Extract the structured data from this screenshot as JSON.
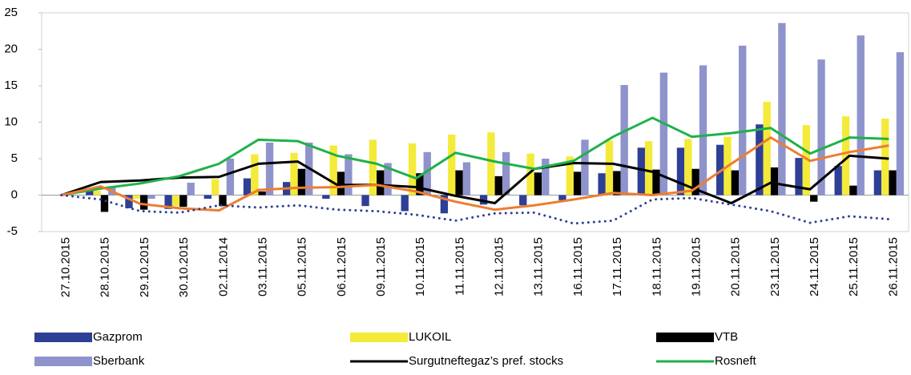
{
  "chart_data": {
    "type": "bar",
    "categories": [
      "27.10.2015",
      "28.10.2015",
      "29.10.2015",
      "30.10.2015",
      "02.11.2014",
      "03.11.2015",
      "05.11.2015",
      "06.11.2015",
      "09.11.2015",
      "10.11.2015",
      "11.11.2015",
      "12.11.2015",
      "13.11.2015",
      "16.11.2015",
      "17.11.2015",
      "18.11.2015",
      "19.11.2015",
      "20.11.2015",
      "23.11.2015",
      "24.11.2015",
      "25.11.2015",
      "26.11.2015"
    ],
    "series": [
      {
        "name": "Gazprom",
        "type": "bar",
        "color": "#2e3f96",
        "values": [
          0,
          0.8,
          -1.8,
          -1.9,
          -0.5,
          2.3,
          1.8,
          -0.5,
          -1.5,
          -2.2,
          -2.5,
          -1.3,
          -1.4,
          -0.7,
          3.0,
          6.5,
          6.5,
          6.9,
          9.7,
          5.1,
          4.0,
          3.4
        ]
      },
      {
        "name": "LUKOIL",
        "type": "bar",
        "color": "#f4ea3a",
        "values": [
          0,
          0.6,
          -0.5,
          -1.5,
          2.2,
          5.6,
          5.8,
          6.8,
          7.6,
          7.1,
          8.3,
          8.6,
          5.7,
          5.3,
          7.5,
          7.4,
          7.7,
          8.0,
          12.8,
          9.6,
          10.8,
          10.5
        ]
      },
      {
        "name": "VTB",
        "type": "bar",
        "color": "#000000",
        "values": [
          0,
          -2.3,
          -2.0,
          -1.6,
          -1.5,
          0.5,
          3.6,
          3.2,
          3.4,
          3.0,
          3.4,
          2.6,
          3.1,
          3.2,
          3.3,
          3.5,
          3.6,
          3.4,
          3.8,
          -0.9,
          1.3,
          3.4
        ]
      },
      {
        "name": "Sberbank",
        "type": "bar",
        "color": "#8f93cc",
        "values": [
          0,
          1.0,
          -0.5,
          1.7,
          5.0,
          7.2,
          7.2,
          5.6,
          4.4,
          5.9,
          4.5,
          5.9,
          5.0,
          7.6,
          15.1,
          16.8,
          17.8,
          20.5,
          23.6,
          18.6,
          21.9,
          19.6
        ]
      },
      {
        "name": "Surgutneftegaz’s pref. stocks",
        "type": "line",
        "color": "#000000",
        "values": [
          0,
          1.8,
          2.0,
          2.4,
          2.5,
          4.3,
          4.6,
          1.4,
          1.4,
          1.1,
          -0.1,
          -1.1,
          3.6,
          4.4,
          4.3,
          3.2,
          1.0,
          -1.1,
          1.7,
          0.8,
          5.4,
          5.0
        ]
      },
      {
        "name": "Rosneft",
        "type": "line",
        "color": "#1fb14a",
        "values": [
          0,
          0.9,
          1.6,
          2.6,
          4.3,
          7.6,
          7.4,
          5.4,
          4.3,
          2.3,
          5.8,
          4.6,
          3.6,
          4.7,
          8.0,
          10.6,
          8.0,
          8.5,
          9.2,
          5.7,
          7.9,
          7.7
        ]
      },
      {
        "type": "line",
        "color": "#ed7d31",
        "values": [
          0,
          1.2,
          -1.2,
          -1.8,
          -2.1,
          0.7,
          1.0,
          1.1,
          1.4,
          0.5,
          -0.9,
          -2.0,
          -1.4,
          -0.6,
          0.3,
          0.0,
          0.6,
          4.3,
          7.9,
          4.7,
          5.9,
          6.8
        ]
      },
      {
        "type": "line",
        "color": "#2e3f96",
        "dash": "dotted",
        "values": [
          0,
          -0.6,
          -2.2,
          -2.4,
          -1.4,
          -1.7,
          -1.4,
          -2.0,
          -2.2,
          -2.7,
          -3.5,
          -2.5,
          -2.4,
          -3.9,
          -3.5,
          -0.6,
          -0.4,
          -1.3,
          -2.2,
          -3.8,
          -2.9,
          -3.3
        ]
      }
    ],
    "ylim": [
      -5,
      25
    ],
    "yticks": [
      -5,
      0,
      5,
      10,
      15,
      20,
      25
    ],
    "grid": false
  }
}
